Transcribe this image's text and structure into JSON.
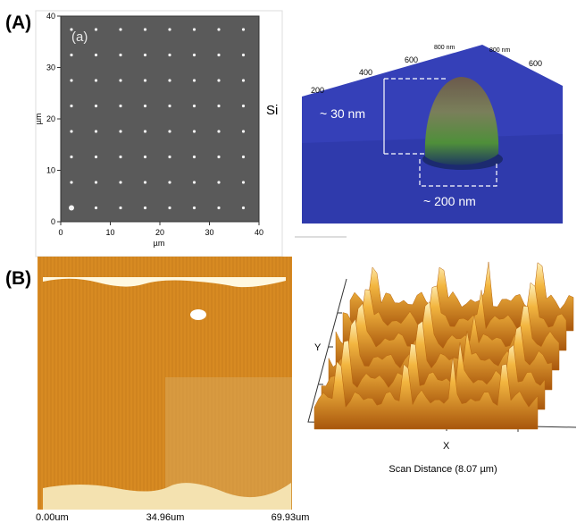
{
  "panel_labels": [
    "(A)",
    "(B)"
  ],
  "panel_a_left": {
    "label": "(a)",
    "xticks": [
      "0",
      "10",
      "20",
      "30",
      "40"
    ],
    "yticks": [
      "0",
      "10",
      "20",
      "30",
      "40"
    ],
    "xlabel": "µm",
    "ylabel": "µm",
    "side_label": "Si"
  },
  "panel_a_right": {
    "axis_labels": [
      "200",
      "400",
      "600",
      "800 nm",
      "800 nm",
      "600"
    ],
    "height_label": "~ 30 nm",
    "width_label": "~ 200 nm"
  },
  "panel_b_left": {
    "xticks": [
      "0.00um",
      "34.96um",
      "69.93um"
    ]
  },
  "panel_b_right": {
    "y_label": "Y",
    "x_label": "X",
    "caption": "Scan Distance (8.07 µm)"
  }
}
